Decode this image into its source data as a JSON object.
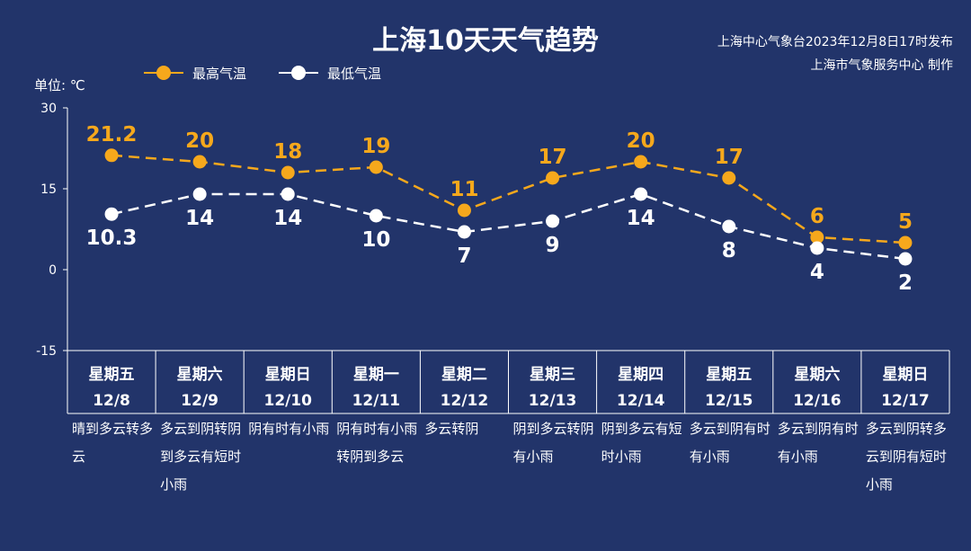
{
  "header": {
    "title": "上海10天天气趋势",
    "source_line1": "上海中心气象台2023年12月8日17时发布",
    "source_line2": "上海市气象服务中心 制作",
    "unit": "单位: ℃"
  },
  "colors": {
    "background": "#22346a",
    "high": "#f6a81c",
    "low": "#ffffff",
    "axis": "#ffffff"
  },
  "chart_data": {
    "type": "line",
    "title": "上海10天天气趋势",
    "ylabel": "单位: ℃",
    "ylim": [
      -15,
      30
    ],
    "yticks": [
      -15,
      0,
      15,
      30
    ],
    "grid": false,
    "legend_placement": "top-left",
    "categories": [
      {
        "weekday": "星期五",
        "date": "12/8"
      },
      {
        "weekday": "星期六",
        "date": "12/9"
      },
      {
        "weekday": "星期日",
        "date": "12/10"
      },
      {
        "weekday": "星期一",
        "date": "12/11"
      },
      {
        "weekday": "星期二",
        "date": "12/12"
      },
      {
        "weekday": "星期三",
        "date": "12/13"
      },
      {
        "weekday": "星期四",
        "date": "12/14"
      },
      {
        "weekday": "星期五",
        "date": "12/15"
      },
      {
        "weekday": "星期六",
        "date": "12/16"
      },
      {
        "weekday": "星期日",
        "date": "12/17"
      }
    ],
    "series": [
      {
        "name": "最高气温",
        "values": [
          21.2,
          20,
          18,
          19,
          11,
          17,
          20,
          17,
          6,
          5
        ],
        "labels": [
          "21.2",
          "20",
          "18",
          "19",
          "11",
          "17",
          "20",
          "17",
          "6",
          "5"
        ]
      },
      {
        "name": "最低气温",
        "values": [
          10.3,
          14,
          14,
          10,
          7,
          9,
          14,
          8,
          4,
          2
        ],
        "labels": [
          "10.3",
          "14",
          "14",
          "10",
          "7",
          "9",
          "14",
          "8",
          "4",
          "2"
        ]
      }
    ],
    "weather": [
      "晴到多云转多云",
      "多云到阴转阴到多云有短时小雨",
      "阴有时有小雨",
      "阴有时有小雨转阴到多云",
      "多云转阴",
      "阴到多云转阴有小雨",
      "阴到多云有短时小雨",
      "多云到阴有时有小雨",
      "多云到阴有时有小雨",
      "多云到阴转多云到阴有短时小雨"
    ]
  }
}
